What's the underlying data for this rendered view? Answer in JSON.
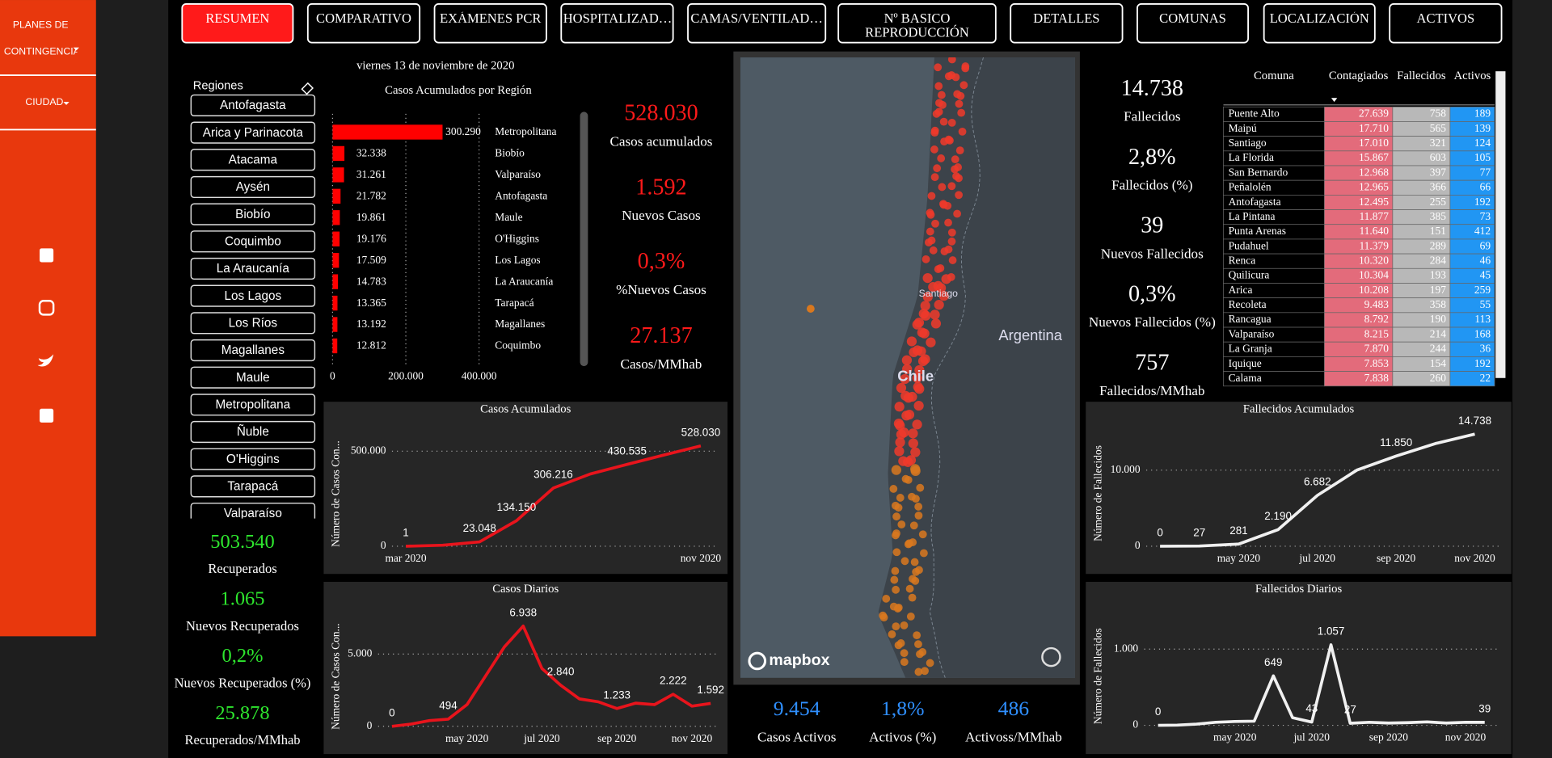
{
  "sidebar": {
    "menu": [
      "PLANES DE CONTINGENCIA",
      "CIUDAD"
    ]
  },
  "tabs": [
    "RESUMEN",
    "COMPARATIVO",
    "EXÁMENES PCR",
    "HOSPITALIZAD…",
    "CAMAS/VENTILAD…",
    "Nº BASICO REPRODUCCIÓN",
    "DETALLES",
    "COMUNAS",
    "LOCALIZACIÓN",
    "ACTIVOS"
  ],
  "date": "viernes 13 de noviembre de 2020",
  "regions": {
    "title": "Regiones",
    "items": [
      "Antofagasta",
      "Arica y Parinacota",
      "Atacama",
      "Aysén",
      "Biobío",
      "Coquimbo",
      "La Araucanía",
      "Los Lagos",
      "Los Ríos",
      "Magallanes",
      "Maule",
      "Metropolitana",
      "Ñuble",
      "O'Higgins",
      "Tarapacá",
      "Valparaíso"
    ]
  },
  "kpis_cases": [
    {
      "value": "528.030",
      "label": "Casos acumulados"
    },
    {
      "value": "1.592",
      "label": "Nuevos Casos"
    },
    {
      "value": "0,3%",
      "label": "%Nuevos Casos"
    },
    {
      "value": "27.137",
      "label": "Casos/MMhab"
    }
  ],
  "kpis_deaths": [
    {
      "value": "14.738",
      "label": "Fallecidos"
    },
    {
      "value": "2,8%",
      "label": "Fallecidos (%)"
    },
    {
      "value": "39",
      "label": "Nuevos Fallecidos"
    },
    {
      "value": "0,3%",
      "label": "Nuevos Fallecidos (%)"
    },
    {
      "value": "757",
      "label": "Fallecidos/MMhab"
    }
  ],
  "kpis_recovered": [
    {
      "value": "503.540",
      "label": "Recuperados"
    },
    {
      "value": "1.065",
      "label": "Nuevos Recuperados"
    },
    {
      "value": "0,2%",
      "label": "Nuevos Recuperados (%)"
    },
    {
      "value": "25.878",
      "label": "Recuperados/MMhab"
    }
  ],
  "kpis_active": [
    {
      "value": "9.454",
      "label": "Casos Activos"
    },
    {
      "value": "1,8%",
      "label": "Activos (%)"
    },
    {
      "value": "486",
      "label": "Activoss/MMhab"
    }
  ],
  "table": {
    "columns": [
      "Comuna",
      "Contagiados",
      "Fallecidos",
      "Activos"
    ],
    "rows": [
      [
        "Puente Alto",
        "27.639",
        "758",
        "189"
      ],
      [
        "Maipú",
        "17.710",
        "565",
        "139"
      ],
      [
        "Santiago",
        "17.010",
        "321",
        "124"
      ],
      [
        "La Florida",
        "15.867",
        "603",
        "105"
      ],
      [
        "San Bernardo",
        "12.968",
        "397",
        "77"
      ],
      [
        "Peñalolén",
        "12.965",
        "366",
        "66"
      ],
      [
        "Antofagasta",
        "12.495",
        "255",
        "192"
      ],
      [
        "La Pintana",
        "11.877",
        "385",
        "73"
      ],
      [
        "Punta Arenas",
        "11.640",
        "151",
        "412"
      ],
      [
        "Pudahuel",
        "11.379",
        "289",
        "69"
      ],
      [
        "Renca",
        "10.320",
        "284",
        "46"
      ],
      [
        "Quilicura",
        "10.304",
        "193",
        "45"
      ],
      [
        "Arica",
        "10.208",
        "197",
        "259"
      ],
      [
        "Recoleta",
        "9.483",
        "358",
        "55"
      ],
      [
        "Rancagua",
        "8.792",
        "190",
        "113"
      ],
      [
        "Valparaíso",
        "8.215",
        "214",
        "168"
      ],
      [
        "La Granja",
        "7.870",
        "244",
        "36"
      ],
      [
        "Iquique",
        "7.853",
        "154",
        "192"
      ],
      [
        "Calama",
        "7.838",
        "260",
        "22"
      ]
    ]
  },
  "map": {
    "labels": [
      "Santiago",
      "Chile",
      "Argentina",
      "mapbox"
    ]
  },
  "chart_data": [
    {
      "type": "hbar",
      "title": "Casos Acumulados por Región",
      "color": "#ff0000",
      "categories": [
        "Metropolitana",
        "Biobío",
        "Valparaíso",
        "Antofagasta",
        "Maule",
        "O'Higgins",
        "Los Lagos",
        "La Araucanía",
        "Tarapacá",
        "Magallanes",
        "Coquimbo"
      ],
      "values": [
        300290,
        32338,
        31261,
        21782,
        19861,
        19176,
        17509,
        14783,
        13365,
        13192,
        12812
      ],
      "value_labels": [
        "300.290",
        "32.338",
        "31.261",
        "21.782",
        "19.861",
        "19.176",
        "17.509",
        "14.783",
        "13.365",
        "13.192",
        "12.812"
      ],
      "xlim": [
        0,
        400000
      ],
      "xticks": [
        0,
        {
          "value": 200000,
          "label": "200.000"
        },
        {
          "value": 400000,
          "label": "400.000"
        }
      ],
      "grid": true
    },
    {
      "type": "line",
      "title": "Casos Acumulados",
      "y_label": "Número de Casos Con...",
      "color": "#e8141c",
      "categories": [
        "mar 2020",
        null,
        null,
        null,
        null,
        null,
        null,
        null,
        "nov 2020"
      ],
      "values": [
        1,
        5000,
        23048,
        134150,
        306216,
        380000,
        430535,
        480000,
        528030
      ],
      "value_labels": [
        "1",
        null,
        "23.048",
        "134.150",
        "306.216",
        null,
        "430.535",
        null,
        "528.030"
      ],
      "ylim": [
        0,
        635000
      ],
      "yticks": [
        0,
        {
          "value": 500000,
          "label": "500.000"
        }
      ],
      "grid": true
    },
    {
      "type": "line",
      "title": "Casos Diarios",
      "y_label": "Número de Casos Con...",
      "color": "#e8141c",
      "categories": [
        null,
        null,
        null,
        null,
        "may 2020",
        null,
        null,
        null,
        "jul 2020",
        null,
        null,
        null,
        "sep 2020",
        null,
        null,
        null,
        "nov 2020",
        null
      ],
      "values": [
        0,
        150,
        400,
        494,
        1500,
        3500,
        5500,
        6938,
        4000,
        2840,
        1900,
        1700,
        1233,
        1600,
        1500,
        2222,
        1400,
        1592
      ],
      "value_labels": [
        "0",
        null,
        null,
        "494",
        null,
        null,
        null,
        "6.938",
        null,
        "2.840",
        null,
        null,
        "1.233",
        null,
        null,
        "2.222",
        null,
        "1.592"
      ],
      "ylim": [
        0,
        8000
      ],
      "yticks": [
        0,
        {
          "value": 5000,
          "label": "5.000"
        }
      ],
      "grid": true
    },
    {
      "type": "line",
      "title": "Fallecidos Acumulados",
      "y_label": "Número de Fallecidos",
      "color": "#f0f0f0",
      "categories": [
        null,
        null,
        "may 2020",
        null,
        "jul 2020",
        null,
        "sep 2020",
        null,
        "nov 2020"
      ],
      "values": [
        0,
        27,
        281,
        2190,
        6682,
        10000,
        11850,
        13500,
        14738
      ],
      "value_labels": [
        "0",
        "27",
        "281",
        "2.190",
        "6.682",
        null,
        "11.850",
        null,
        "14.738"
      ],
      "ylim": [
        0,
        16000
      ],
      "yticks": [
        0,
        {
          "value": 10000,
          "label": "10.000"
        }
      ],
      "grid": true
    },
    {
      "type": "line",
      "title": "Fallecidos Diarios",
      "y_label": "Número de Fallecidos",
      "color": "#f0f0f0",
      "categories": [
        null,
        null,
        null,
        null,
        "may 2020",
        null,
        null,
        null,
        "jul 2020",
        null,
        null,
        null,
        "sep 2020",
        null,
        null,
        null,
        "nov 2020",
        null
      ],
      "values": [
        0,
        3,
        15,
        40,
        50,
        55,
        649,
        100,
        43,
        1057,
        27,
        40,
        30,
        35,
        45,
        30,
        40,
        39
      ],
      "value_labels": [
        "0",
        null,
        null,
        null,
        null,
        null,
        "649",
        null,
        "43",
        "1.057",
        "27",
        null,
        null,
        null,
        null,
        null,
        null,
        "39"
      ],
      "ylim": [
        0,
        1500
      ],
      "yticks": [
        0,
        {
          "value": 1000,
          "label": "1.000"
        }
      ],
      "grid": true
    }
  ]
}
